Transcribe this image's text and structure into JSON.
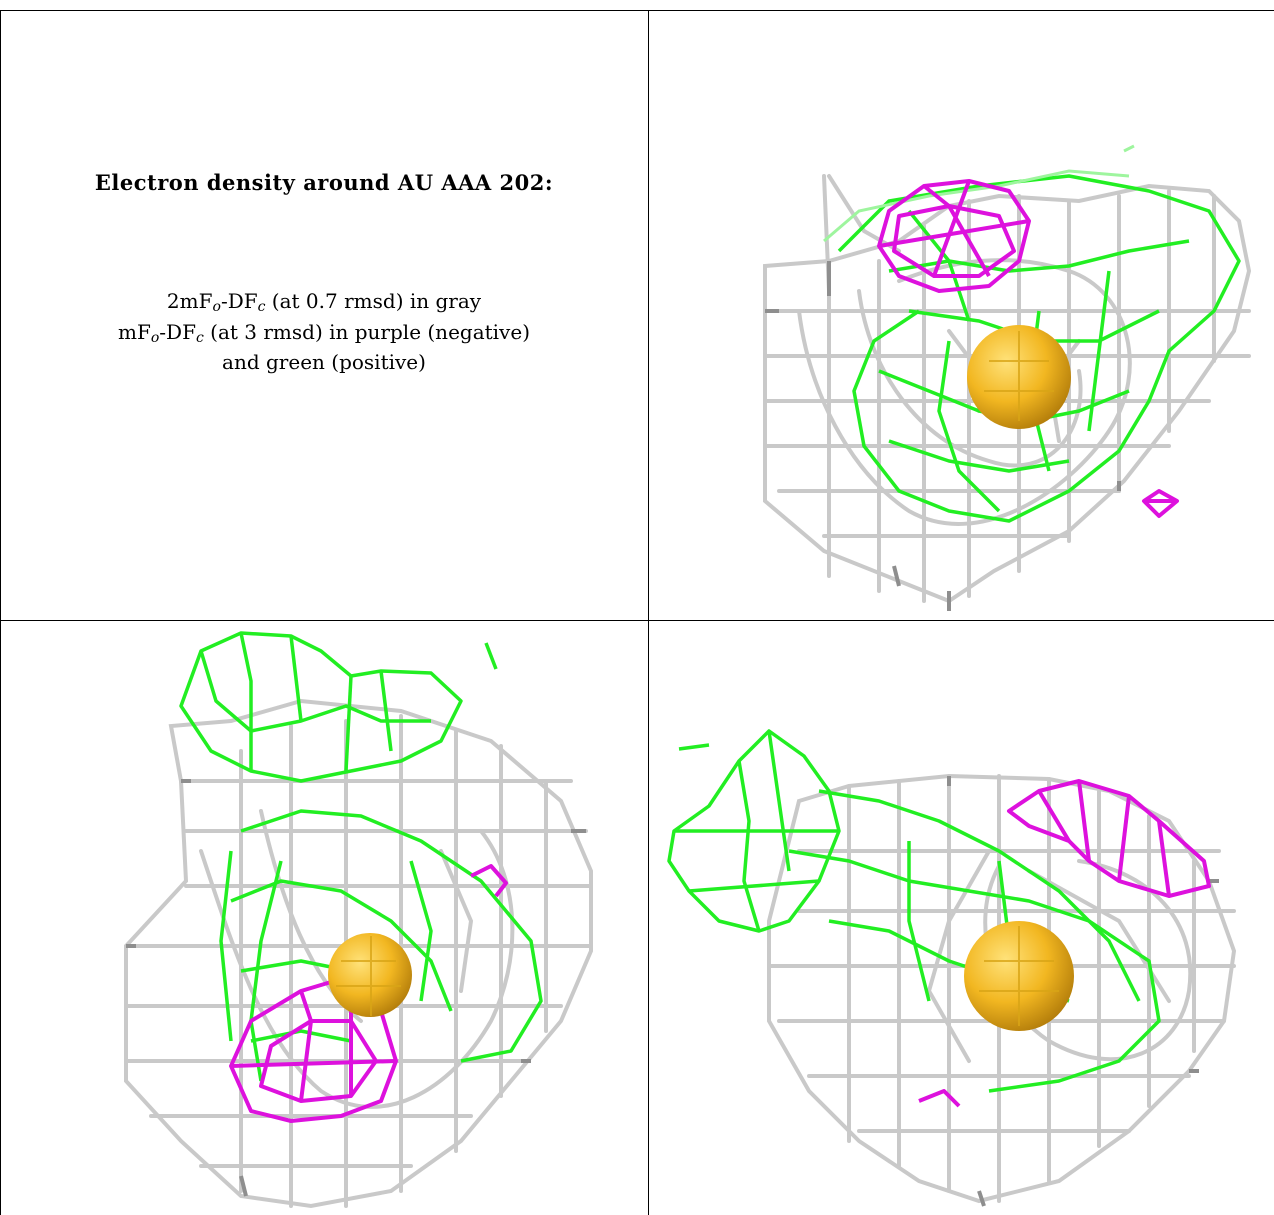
{
  "caption": {
    "title": "Electron density around AU AAA 202:",
    "line1": {
      "a": "2mF",
      "o": "o",
      "b": "-DF",
      "c": "c",
      "rest": " (at 0.7 rmsd) in gray"
    },
    "line2": {
      "a": "mF",
      "o": "o",
      "b": "-DF",
      "c": "c",
      "rest": " (at 3 rmsd) in purple (negative)"
    },
    "line3": "and green (positive)"
  },
  "colors": {
    "gray_mesh": "#c9c9c9",
    "gray_dark": "#8e8e8e",
    "green_mesh": "#22ee22",
    "purple_mesh": "#dd11dd",
    "atom": "#f2b721",
    "border": "#000000"
  },
  "panels": [
    {
      "name": "view-top-right"
    },
    {
      "name": "view-bottom-left"
    },
    {
      "name": "view-bottom-right"
    }
  ]
}
